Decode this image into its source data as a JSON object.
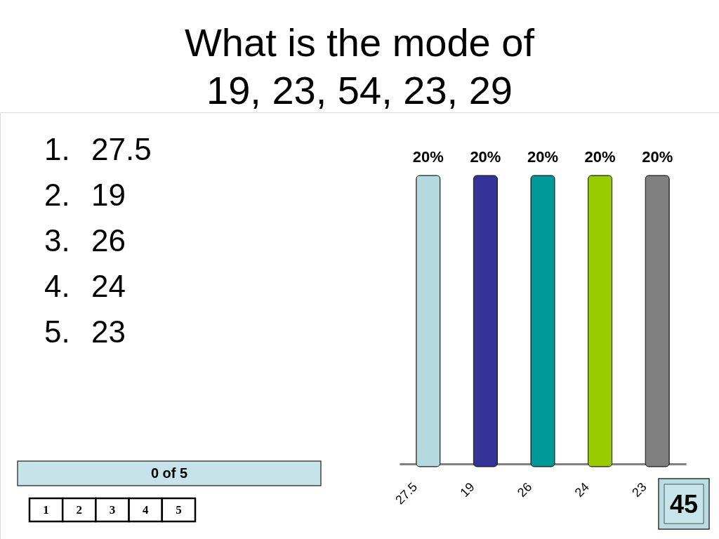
{
  "chart_data": {
    "type": "bar",
    "title": "What is the mode of\n19, 23, 54, 23, 29",
    "categories": [
      "27.5",
      "19",
      "26",
      "24",
      "23"
    ],
    "values": [
      20,
      20,
      20,
      20,
      20
    ],
    "colors": [
      "#b4dadf",
      "#333399",
      "#009999",
      "#99cc00",
      "#808080"
    ],
    "value_labels": [
      "20%",
      "20%",
      "20%",
      "20%",
      "20%"
    ],
    "annotations": [
      "1. 27.5",
      "2. 19",
      "3. 26",
      "4. 24",
      "5. 23",
      "0 of 5",
      "45",
      "1",
      "2",
      "3",
      "4",
      "5"
    ]
  }
}
